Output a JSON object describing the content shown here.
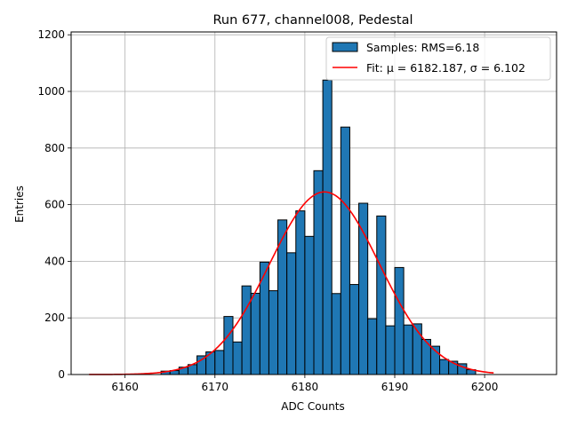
{
  "chart_data": {
    "type": "bar",
    "title": "Run 677, channel008, Pedestal",
    "xlabel": "ADC Counts",
    "ylabel": "Entries",
    "xlim": [
      6154,
      6208
    ],
    "ylim": [
      0,
      1210
    ],
    "xticks": [
      6160,
      6170,
      6180,
      6190,
      6200
    ],
    "yticks": [
      0,
      200,
      400,
      600,
      800,
      1000,
      1200
    ],
    "grid": true,
    "legend_position": "top-right",
    "bin_width": 1,
    "histogram": {
      "name": "Samples: RMS=6.18",
      "color": "#1f77b4",
      "bins": [
        {
          "x": 6164,
          "count": 12
        },
        {
          "x": 6165,
          "count": 14
        },
        {
          "x": 6166,
          "count": 26
        },
        {
          "x": 6167,
          "count": 35
        },
        {
          "x": 6168,
          "count": 66
        },
        {
          "x": 6169,
          "count": 80
        },
        {
          "x": 6170,
          "count": 85
        },
        {
          "x": 6171,
          "count": 205
        },
        {
          "x": 6172,
          "count": 115
        },
        {
          "x": 6173,
          "count": 313
        },
        {
          "x": 6174,
          "count": 287
        },
        {
          "x": 6175,
          "count": 397
        },
        {
          "x": 6176,
          "count": 296
        },
        {
          "x": 6177,
          "count": 546
        },
        {
          "x": 6178,
          "count": 430
        },
        {
          "x": 6179,
          "count": 578
        },
        {
          "x": 6180,
          "count": 488
        },
        {
          "x": 6181,
          "count": 720
        },
        {
          "x": 6182,
          "count": 1040
        },
        {
          "x": 6183,
          "count": 286
        },
        {
          "x": 6184,
          "count": 874
        },
        {
          "x": 6185,
          "count": 318
        },
        {
          "x": 6186,
          "count": 605
        },
        {
          "x": 6187,
          "count": 197
        },
        {
          "x": 6188,
          "count": 560
        },
        {
          "x": 6189,
          "count": 172
        },
        {
          "x": 6190,
          "count": 378
        },
        {
          "x": 6191,
          "count": 175
        },
        {
          "x": 6192,
          "count": 179
        },
        {
          "x": 6193,
          "count": 124
        },
        {
          "x": 6194,
          "count": 100
        },
        {
          "x": 6195,
          "count": 53
        },
        {
          "x": 6196,
          "count": 47
        },
        {
          "x": 6197,
          "count": 38
        },
        {
          "x": 6198,
          "count": 17
        }
      ]
    },
    "fit": {
      "name": "Fit: μ = 6182.187, σ = 6.102",
      "color": "#ff0000",
      "mu": 6182.187,
      "sigma": 6.102,
      "amplitude": 645,
      "x_range": [
        6156,
        6201
      ]
    }
  }
}
